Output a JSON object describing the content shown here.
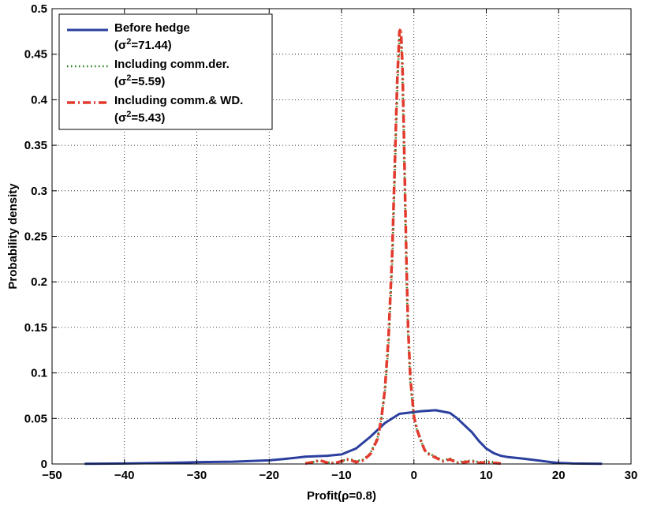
{
  "chart_data": {
    "type": "line",
    "xlabel": "Profit(ρ=0.8)",
    "ylabel": "Probability density",
    "xlim": [
      -50,
      30
    ],
    "ylim": [
      0,
      0.5
    ],
    "xticks": [
      -50,
      -40,
      -30,
      -20,
      -10,
      0,
      10,
      20,
      30
    ],
    "xtick_labels": [
      "−50",
      "−40",
      "−30",
      "−20",
      "−10",
      "0",
      "10",
      "20",
      "30"
    ],
    "yticks": [
      0,
      0.05,
      0.1,
      0.15,
      0.2,
      0.25,
      0.3,
      0.35,
      0.4,
      0.45,
      0.5
    ],
    "ytick_labels": [
      "0",
      "0.05",
      "0.1",
      "0.15",
      "0.2",
      "0.25",
      "0.3",
      "0.35",
      "0.4",
      "0.45",
      "0.5"
    ],
    "grid": true,
    "legend_position": "top-left",
    "series": [
      {
        "name": "Before hedge",
        "legend_sub_prefix": "(σ",
        "legend_sub_sup": "2",
        "legend_sub_suffix": "=71.44)",
        "color": "#2b3f9e",
        "style": "solid",
        "x": [
          -45.5,
          -40,
          -35,
          -32,
          -30,
          -25,
          -20,
          -18,
          -15,
          -12,
          -10,
          -8,
          -6,
          -4,
          -2,
          0,
          1,
          3,
          5,
          6,
          8,
          9,
          10,
          11,
          12,
          13,
          15,
          17,
          19,
          20,
          22,
          26
        ],
        "y": [
          0.0003,
          0.0005,
          0.001,
          0.0015,
          0.002,
          0.0025,
          0.004,
          0.0055,
          0.008,
          0.009,
          0.0105,
          0.017,
          0.03,
          0.045,
          0.055,
          0.057,
          0.058,
          0.059,
          0.056,
          0.05,
          0.035,
          0.025,
          0.017,
          0.012,
          0.009,
          0.0075,
          0.006,
          0.004,
          0.002,
          0.0012,
          0.0005,
          0.0002
        ]
      },
      {
        "name": "Including comm.der.",
        "legend_sub_prefix": "(σ",
        "legend_sub_sup": "2",
        "legend_sub_suffix": "=5.59)",
        "color": "#1a7a1a",
        "style": "dotted",
        "x": [
          -15,
          -14,
          -13,
          -12,
          -11,
          -10,
          -9,
          -8,
          -7,
          -6,
          -5,
          -4.5,
          -4,
          -3.5,
          -3,
          -2.6,
          -2.3,
          -2,
          -1.8,
          -1.6,
          -1.4,
          -1.2,
          -1,
          -0.8,
          -0.5,
          0,
          0.5,
          1,
          1.5,
          2,
          3,
          4,
          5,
          6,
          7,
          8,
          9,
          10,
          11,
          12
        ],
        "y": [
          0.0005,
          0.002,
          0.004,
          0.002,
          0.0008,
          0.003,
          0.006,
          0.003,
          0.005,
          0.012,
          0.03,
          0.05,
          0.08,
          0.13,
          0.22,
          0.33,
          0.41,
          0.47,
          0.47,
          0.43,
          0.36,
          0.28,
          0.2,
          0.14,
          0.09,
          0.05,
          0.035,
          0.025,
          0.015,
          0.012,
          0.008,
          0.004,
          0.006,
          0.002,
          0.003,
          0.004,
          0.002,
          0.003,
          0.002,
          0.0005
        ]
      },
      {
        "name": "Including comm.& WD.",
        "legend_sub_prefix": "(σ",
        "legend_sub_sup": "2",
        "legend_sub_suffix": "=5.43)",
        "color": "#e23b2e",
        "style": "dashdot",
        "x": [
          -15,
          -14,
          -13,
          -12,
          -11,
          -10,
          -9,
          -8,
          -7,
          -6,
          -5,
          -4.5,
          -4,
          -3.5,
          -3,
          -2.6,
          -2.3,
          -2,
          -1.8,
          -1.6,
          -1.4,
          -1.2,
          -1,
          -0.8,
          -0.5,
          0,
          0.5,
          1,
          1.5,
          2,
          3,
          4,
          5,
          6,
          7,
          8,
          9,
          10,
          11,
          12
        ],
        "y": [
          0.0005,
          0.002,
          0.004,
          0.0015,
          0.0008,
          0.003,
          0.005,
          0.002,
          0.004,
          0.011,
          0.028,
          0.05,
          0.082,
          0.14,
          0.23,
          0.34,
          0.42,
          0.475,
          0.478,
          0.44,
          0.37,
          0.29,
          0.21,
          0.15,
          0.095,
          0.052,
          0.036,
          0.025,
          0.015,
          0.011,
          0.007,
          0.003,
          0.005,
          0.001,
          0.002,
          0.003,
          0.001,
          0.002,
          0.001,
          0.0005
        ]
      }
    ]
  }
}
